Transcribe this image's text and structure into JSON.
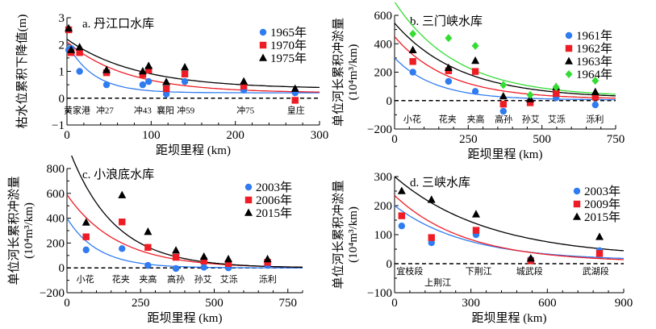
{
  "figure": {
    "colors": {
      "blue": "#2f7cf0",
      "red": "#ee1c24",
      "black": "#000000",
      "green": "#33dd33"
    }
  },
  "chart_data": [
    {
      "id": "a",
      "type": "scatter",
      "title": "a. 丹江口水库",
      "xlabel": "距坝里程 (km)",
      "ylabel": "枯水位累积下降值(m)",
      "ylabel2": "",
      "xlim": [
        0,
        300
      ],
      "ylim": [
        -1,
        3
      ],
      "xticks": [
        0,
        100,
        200,
        300
      ],
      "yticks": [
        -1,
        0,
        1,
        2,
        3
      ],
      "xminor": 20,
      "yminor": 0.5,
      "zero_line": true,
      "legend_position": "top-right",
      "stations": [
        {
          "label": "黄家港",
          "x": 12
        },
        {
          "label": "冲27",
          "x": 45
        },
        {
          "label": "冲43",
          "x": 90
        },
        {
          "label": "襄阳",
          "x": 117
        },
        {
          "label": "冲59",
          "x": 141
        },
        {
          "label": "冲75",
          "x": 212
        },
        {
          "label": "皇庄",
          "x": 272
        }
      ],
      "station_y": -0.45,
      "series": [
        {
          "name": "1965年",
          "color": "blue",
          "marker": "circle",
          "x": [
            2,
            5,
            15,
            47,
            90,
            97,
            118,
            140,
            210,
            271
          ],
          "y": [
            1.8,
            1.85,
            1.0,
            0.5,
            0.5,
            0.62,
            0.15,
            0.62,
            0.3,
            0.2
          ],
          "fit": {
            "a": 1.85,
            "b": 0.2,
            "k": 0.032
          }
        },
        {
          "name": "1970年",
          "color": "red",
          "marker": "square",
          "x": [
            2,
            5,
            15,
            47,
            90,
            97,
            118,
            140,
            210,
            271
          ],
          "y": [
            2.55,
            1.7,
            1.7,
            0.95,
            0.88,
            1.05,
            0.35,
            0.9,
            0.45,
            -0.08
          ],
          "fit": {
            "a": 1.9,
            "b": 0.2,
            "k": 0.014
          }
        },
        {
          "name": "1975年",
          "color": "black",
          "marker": "triangle",
          "x": [
            2,
            5,
            15,
            47,
            90,
            97,
            118,
            140,
            210,
            271
          ],
          "y": [
            2.6,
            1.8,
            1.9,
            1.05,
            1.0,
            1.2,
            0.6,
            1.15,
            0.62,
            0.35
          ],
          "fit": {
            "a": 1.85,
            "b": 0.35,
            "k": 0.012
          }
        }
      ]
    },
    {
      "id": "b",
      "type": "scatter",
      "title": "b. 三门峡水库",
      "xlabel": "距坝里程 (km)",
      "ylabel": "单位河长累积冲淤量",
      "ylabel2": "(10⁴m³/km)",
      "xlim": [
        0,
        750
      ],
      "ylim": [
        -200,
        700
      ],
      "xticks": [
        0,
        250,
        500,
        750
      ],
      "yticks": [
        -200,
        0,
        200,
        400,
        600
      ],
      "xminor": 50,
      "yminor": 100,
      "zero_line": true,
      "legend_position": "top-right",
      "stations": [
        {
          "label": "小花",
          "x": 60
        },
        {
          "label": "花夹",
          "x": 180
        },
        {
          "label": "夹高",
          "x": 275
        },
        {
          "label": "高孙",
          "x": 370
        },
        {
          "label": "孙艾",
          "x": 462
        },
        {
          "label": "艾泺",
          "x": 550
        },
        {
          "label": "泺利",
          "x": 680
        }
      ],
      "station_y": -130,
      "series": [
        {
          "name": "1961年",
          "color": "blue",
          "marker": "circle",
          "x": [
            62,
            183,
            274,
            369,
            460,
            548,
            681
          ],
          "y": [
            200,
            135,
            65,
            -75,
            -10,
            20,
            -30
          ],
          "fit": {
            "a": 295,
            "b": 5,
            "k": 0.0072
          }
        },
        {
          "name": "1962年",
          "color": "red",
          "marker": "square",
          "x": [
            62,
            183,
            274,
            369,
            460,
            548,
            681
          ],
          "y": [
            275,
            210,
            205,
            -25,
            -15,
            50,
            25
          ],
          "fit": {
            "a": 440,
            "b": 10,
            "k": 0.0055
          }
        },
        {
          "name": "1963年",
          "color": "black",
          "marker": "triangle",
          "x": [
            62,
            183,
            274,
            369,
            460,
            548,
            681
          ],
          "y": [
            355,
            230,
            280,
            30,
            10,
            95,
            60
          ],
          "fit": {
            "a": 530,
            "b": 15,
            "k": 0.0045
          }
        },
        {
          "name": "1964年",
          "color": "green",
          "marker": "diamond",
          "x": [
            62,
            183,
            274,
            369,
            460,
            548,
            681
          ],
          "y": [
            470,
            440,
            385,
            110,
            40,
            95,
            140
          ],
          "fit": {
            "a": 670,
            "b": 25,
            "k": 0.0047
          }
        }
      ]
    },
    {
      "id": "c",
      "type": "scatter",
      "title": "c. 小浪底水库",
      "xlabel": "距坝里程 (km)",
      "ylabel": "单位河长累积冲淤量",
      "ylabel2": "(10⁴m³/km)",
      "xlim": [
        0,
        800
      ],
      "ylim": [
        -200,
        850
      ],
      "xticks": [
        0,
        250,
        500,
        750
      ],
      "yticks": [
        -200,
        0,
        200,
        400,
        600,
        800
      ],
      "xminor": 50,
      "yminor": 100,
      "zero_line": true,
      "legend_position": "top-right",
      "stations": [
        {
          "label": "小花",
          "x": 62
        },
        {
          "label": "花夹",
          "x": 183
        },
        {
          "label": "夹高",
          "x": 275
        },
        {
          "label": "高孙",
          "x": 370
        },
        {
          "label": "孙艾",
          "x": 462
        },
        {
          "label": "艾泺",
          "x": 550
        },
        {
          "label": "泺利",
          "x": 682
        }
      ],
      "station_y": -90,
      "series": [
        {
          "name": "2003年",
          "color": "blue",
          "marker": "circle",
          "x": [
            65,
            187,
            275,
            370,
            465,
            548,
            681
          ],
          "y": [
            145,
            155,
            20,
            -5,
            5,
            0,
            20
          ],
          "fit": {
            "a": 400,
            "b": 0,
            "k": 0.0095
          }
        },
        {
          "name": "2006年",
          "color": "red",
          "marker": "square",
          "x": [
            65,
            187,
            275,
            370,
            465,
            548,
            681
          ],
          "y": [
            250,
            370,
            165,
            85,
            55,
            35,
            45
          ],
          "fit": {
            "a": 590,
            "b": 0,
            "k": 0.0058
          }
        },
        {
          "name": "2015年",
          "color": "black",
          "marker": "triangle",
          "x": [
            65,
            187,
            275,
            370,
            465,
            548,
            681
          ],
          "y": [
            365,
            585,
            290,
            140,
            90,
            70,
            70
          ],
          "fit": {
            "a": 1000,
            "b": 0,
            "k": 0.0065
          }
        }
      ]
    },
    {
      "id": "d",
      "type": "scatter",
      "title": "d. 三峡水库",
      "xlabel": "距坝里程 (km)",
      "ylabel": "单位河长累积冲淤量",
      "ylabel2": "(10⁴m³/km)",
      "xlim": [
        0,
        900
      ],
      "ylim": [
        -100,
        300
      ],
      "xticks": [
        0,
        300,
        600,
        900
      ],
      "yticks": [
        -100,
        0,
        100,
        200,
        300
      ],
      "xminor": 60,
      "yminor": 50,
      "zero_line": true,
      "legend_position": "top-right",
      "stations": [
        {
          "label": "宜枝段",
          "x": 60,
          "dy": 0
        },
        {
          "label": "上荆江",
          "x": 170,
          "dy": 1
        },
        {
          "label": "下荆江",
          "x": 330,
          "dy": 0
        },
        {
          "label": "城武段",
          "x": 530,
          "dy": 0
        },
        {
          "label": "武湖段",
          "x": 790,
          "dy": 0
        }
      ],
      "station_y": -25,
      "series": [
        {
          "name": "2003年",
          "color": "blue",
          "marker": "circle",
          "x": [
            28,
            145,
            320,
            535,
            805
          ],
          "y": [
            130,
            72,
            100,
            15,
            45
          ],
          "fit": {
            "a": 190,
            "b": 10,
            "k": 0.0035
          }
        },
        {
          "name": "2009年",
          "color": "red",
          "marker": "square",
          "x": [
            28,
            145,
            320,
            535,
            805
          ],
          "y": [
            165,
            90,
            115,
            10,
            35
          ],
          "fit": {
            "a": 230,
            "b": 5,
            "k": 0.0036
          }
        },
        {
          "name": "2015年",
          "color": "black",
          "marker": "triangle",
          "x": [
            28,
            145,
            320,
            535,
            805
          ],
          "y": [
            250,
            220,
            170,
            18,
            92
          ],
          "fit": {
            "a": 280,
            "b": 20,
            "k": 0.0027
          }
        }
      ]
    }
  ]
}
